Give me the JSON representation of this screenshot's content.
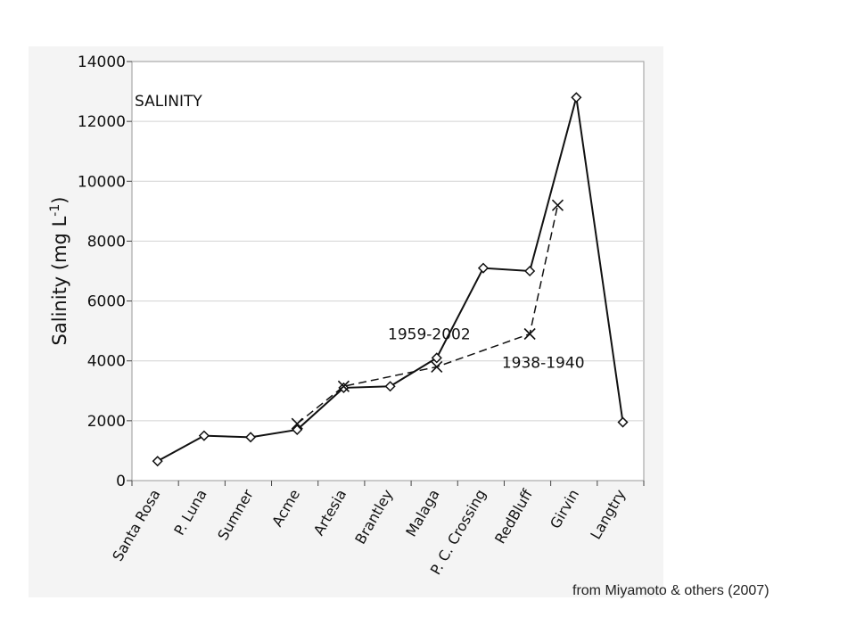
{
  "chart_data": {
    "type": "line",
    "title": "SALINITY",
    "ylabel": "Salinity (mg L-1)",
    "ylabel_parts": {
      "main": "Salinity (mg L",
      "sup": "-1",
      "close": ")"
    },
    "xlabel": "",
    "ylim": [
      0,
      14000
    ],
    "yticks": [
      0,
      2000,
      4000,
      6000,
      8000,
      10000,
      12000,
      14000
    ],
    "grid": true,
    "categories": [
      "Santa Rosa",
      "P. Luna",
      "Sumner",
      "Acme",
      "Artesia",
      "Brantley",
      "Malaga",
      "P. C. Crossing",
      "RedBluff",
      "Girvin",
      "Langtry"
    ],
    "series": [
      {
        "name": "1959-2002",
        "style": "solid",
        "marker": "diamond",
        "points": [
          {
            "x": 0.55,
            "y": 650
          },
          {
            "x": 1.55,
            "y": 1500
          },
          {
            "x": 2.55,
            "y": 1450
          },
          {
            "x": 3.55,
            "y": 1700
          },
          {
            "x": 4.55,
            "y": 3100
          },
          {
            "x": 5.55,
            "y": 3150
          },
          {
            "x": 6.55,
            "y": 4100
          },
          {
            "x": 7.55,
            "y": 7100
          },
          {
            "x": 8.55,
            "y": 7000
          },
          {
            "x": 9.55,
            "y": 12800
          },
          {
            "x": 10.55,
            "y": 1950
          }
        ]
      },
      {
        "name": "1938-1940",
        "style": "dashed",
        "marker": "x",
        "points": [
          {
            "x": 3.55,
            "y": 1900
          },
          {
            "x": 4.55,
            "y": 3150
          },
          {
            "x": 6.55,
            "y": 3800
          },
          {
            "x": 8.55,
            "y": 4900
          },
          {
            "x": 9.15,
            "y": 9200
          }
        ]
      }
    ],
    "annotations": [
      {
        "text": "1959-2002",
        "x": 5.5,
        "y": 4900
      },
      {
        "text": "1938-1940",
        "x": 7.95,
        "y": 3950
      }
    ]
  },
  "source": "from Miyamoto & others (2007)",
  "colors": {
    "line": "#111111",
    "grid": "#d2d2d2",
    "panel": "#f4f4f4",
    "plot": "#ffffff"
  }
}
